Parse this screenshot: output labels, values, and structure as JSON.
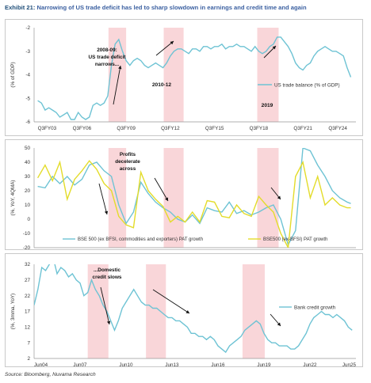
{
  "header": {
    "exhibit_label": "Exhibit 21:",
    "title": "Narrowing of US trade deficit has led to sharp slowdown in earnings and credit time and again"
  },
  "source": "Source: Bloomberg, Nuvama Research",
  "colors": {
    "series_blue": "#6ec3d4",
    "series_yellow": "#e3dc2a",
    "shade": "#f9d6d9",
    "axis_text": "#333333"
  },
  "chart_data": [
    {
      "type": "line",
      "panel": "top",
      "ylabel": "(% of GDP)",
      "ylim": [
        -6,
        -2
      ],
      "yticks": [
        -2,
        -3,
        -4,
        -5,
        -6
      ],
      "xlim": [
        2002.75,
        2024.6
      ],
      "xticks": [
        {
          "label": "Q3FY03",
          "x": 2003.0
        },
        {
          "label": "Q3FY06",
          "x": 2006.0
        },
        {
          "label": "Q3FY09",
          "x": 2009.0
        },
        {
          "label": "Q3FY12",
          "x": 2012.0
        },
        {
          "label": "Q3FY15",
          "x": 2015.0
        },
        {
          "label": "Q3FY18",
          "x": 2018.0
        },
        {
          "label": "Q3FY21",
          "x": 2021.0
        },
        {
          "label": "Q3FY24",
          "x": 2024.0
        }
      ],
      "shaded_ranges": [
        [
          2007.8,
          2009.0
        ],
        [
          2011.55,
          2012.9
        ],
        [
          2017.9,
          2019.35
        ]
      ],
      "series": [
        {
          "name": "US trade balance (% of GDP)",
          "color": "#6ec3d4",
          "x": [
            2003.0,
            2003.25,
            2003.5,
            2003.75,
            2004.0,
            2004.25,
            2004.5,
            2004.75,
            2005.0,
            2005.25,
            2005.5,
            2005.75,
            2006.0,
            2006.25,
            2006.5,
            2006.75,
            2007.0,
            2007.25,
            2007.5,
            2007.75,
            2008.0,
            2008.25,
            2008.5,
            2008.75,
            2009.0,
            2009.25,
            2009.5,
            2009.75,
            2010.0,
            2010.25,
            2010.5,
            2010.75,
            2011.0,
            2011.25,
            2011.5,
            2011.75,
            2012.0,
            2012.25,
            2012.5,
            2012.75,
            2013.0,
            2013.25,
            2013.5,
            2013.75,
            2014.0,
            2014.25,
            2014.5,
            2014.75,
            2015.0,
            2015.25,
            2015.5,
            2015.75,
            2016.0,
            2016.25,
            2016.5,
            2016.75,
            2017.0,
            2017.25,
            2017.5,
            2017.75,
            2018.0,
            2018.25,
            2018.5,
            2018.75,
            2019.0,
            2019.25,
            2019.5,
            2019.75,
            2020.0,
            2020.25,
            2020.5,
            2020.75,
            2021.0,
            2021.25,
            2021.5,
            2021.75,
            2022.0,
            2022.25,
            2022.5,
            2022.75,
            2023.0,
            2023.25,
            2023.5,
            2023.75,
            2024.0,
            2024.25
          ],
          "y": [
            -5.1,
            -5.2,
            -5.5,
            -5.4,
            -5.5,
            -5.6,
            -5.8,
            -5.7,
            -5.6,
            -5.9,
            -5.9,
            -5.6,
            -5.8,
            -5.9,
            -5.8,
            -5.3,
            -5.2,
            -5.3,
            -5.2,
            -4.9,
            -3.6,
            -2.7,
            -2.5,
            -3.0,
            -3.4,
            -3.6,
            -3.4,
            -3.3,
            -3.4,
            -3.6,
            -3.7,
            -3.6,
            -3.5,
            -3.6,
            -3.7,
            -3.5,
            -3.2,
            -3.0,
            -2.9,
            -2.9,
            -3.0,
            -3.1,
            -2.9,
            -2.9,
            -3.0,
            -2.8,
            -2.8,
            -2.9,
            -2.8,
            -2.8,
            -2.7,
            -2.9,
            -2.8,
            -2.8,
            -2.7,
            -2.8,
            -2.8,
            -2.9,
            -3.0,
            -2.8,
            -3.0,
            -3.1,
            -3.0,
            -2.8,
            -2.7,
            -2.4,
            -2.4,
            -2.6,
            -2.8,
            -3.1,
            -3.5,
            -3.7,
            -3.8,
            -3.6,
            -3.5,
            -3.2,
            -3.0,
            -2.9,
            -2.8,
            -2.9,
            -3.0,
            -3.0,
            -3.1,
            -3.2,
            -3.7,
            -4.1
          ]
        }
      ],
      "annotations": [
        {
          "text": "2008-09: US trade deficit narrows...",
          "lines": [
            "2008-09:",
            "US trade deficit",
            "narrows..."
          ]
        },
        {
          "text": "2010-12"
        },
        {
          "text": "2019"
        }
      ]
    },
    {
      "type": "line",
      "panel": "middle",
      "ylabel": "(%, YoY, 4QMA)",
      "ylim": [
        -20,
        50
      ],
      "yticks": [
        50,
        40,
        30,
        20,
        10,
        0,
        -10,
        -20
      ],
      "xlim": [
        2002.75,
        2024.6
      ],
      "xticks": [],
      "shaded_ranges": [
        [
          2007.8,
          2009.0
        ],
        [
          2011.55,
          2012.9
        ],
        [
          2017.9,
          2019.35
        ]
      ],
      "series": [
        {
          "name": "BSE 500 (ex BFSI, commodities and exporters) PAT growth",
          "color": "#6ec3d4",
          "x": [
            2003.0,
            2003.5,
            2004.0,
            2004.5,
            2005.0,
            2005.5,
            2006.0,
            2006.5,
            2007.0,
            2007.5,
            2008.0,
            2008.5,
            2009.0,
            2009.5,
            2010.0,
            2010.5,
            2011.0,
            2011.5,
            2012.0,
            2012.5,
            2013.0,
            2013.5,
            2014.0,
            2014.5,
            2015.0,
            2015.5,
            2016.0,
            2016.5,
            2017.0,
            2017.5,
            2018.0,
            2018.5,
            2019.0,
            2019.5,
            2020.0,
            2020.5,
            2021.0,
            2021.5,
            2022.0,
            2022.5,
            2023.0,
            2023.5,
            2024.0,
            2024.25
          ],
          "y": [
            23,
            22,
            30,
            25,
            30,
            24,
            28,
            38,
            40,
            34,
            30,
            10,
            -3,
            5,
            26,
            18,
            12,
            8,
            5,
            0,
            -2,
            3,
            -3,
            8,
            6,
            5,
            12,
            4,
            6,
            3,
            5,
            8,
            10,
            0,
            -18,
            -8,
            50,
            48,
            38,
            30,
            20,
            15,
            12,
            11
          ]
        },
        {
          "name": "BSE500 (ex-BFSI) PAT growth",
          "color": "#e3dc2a",
          "x": [
            2003.0,
            2003.5,
            2004.0,
            2004.5,
            2005.0,
            2005.5,
            2006.0,
            2006.5,
            2007.0,
            2007.5,
            2008.0,
            2008.5,
            2009.0,
            2009.5,
            2010.0,
            2010.5,
            2011.0,
            2011.5,
            2012.0,
            2012.5,
            2013.0,
            2013.5,
            2014.0,
            2014.5,
            2015.0,
            2015.5,
            2016.0,
            2016.5,
            2017.0,
            2017.5,
            2018.0,
            2018.5,
            2019.0,
            2019.5,
            2020.0,
            2020.5,
            2021.0,
            2021.5,
            2022.0,
            2022.5,
            2023.0,
            2023.5,
            2024.0,
            2024.25
          ],
          "y": [
            29,
            38,
            27,
            40,
            14,
            28,
            34,
            41,
            35,
            25,
            20,
            2,
            -4,
            -6,
            33,
            20,
            14,
            9,
            -2,
            2,
            -2,
            5,
            -2,
            13,
            12,
            2,
            1,
            10,
            4,
            2,
            16,
            10,
            5,
            -10,
            -20,
            30,
            40,
            15,
            30,
            10,
            15,
            10,
            8,
            8
          ]
        }
      ],
      "annotations": [
        {
          "text": "Profits decelerate across",
          "lines": [
            "Profits",
            "decelerate",
            "across"
          ]
        }
      ]
    },
    {
      "type": "line",
      "panel": "bottom",
      "ylabel": "(%, 3mma, YoY)",
      "ylim": [
        2,
        32
      ],
      "yticks": [
        32,
        27,
        22,
        17,
        12,
        7,
        2
      ],
      "xlim": [
        2004.5,
        2025.5
      ],
      "xticks": [
        {
          "label": "Jun04",
          "x": 2004.5
        },
        {
          "label": "Jun07",
          "x": 2007.5
        },
        {
          "label": "Jun10",
          "x": 2010.5
        },
        {
          "label": "Jun13",
          "x": 2013.5
        },
        {
          "label": "Jun16",
          "x": 2016.5
        },
        {
          "label": "Jun19",
          "x": 2019.5
        },
        {
          "label": "Jun22",
          "x": 2022.5
        },
        {
          "label": "Jun25",
          "x": 2025.5
        }
      ],
      "shaded_ranges": [
        [
          2008.0,
          2009.35
        ],
        [
          2011.8,
          2013.1
        ],
        [
          2018.1,
          2019.55
        ]
      ],
      "series": [
        {
          "name": "Bank credit growth",
          "color": "#6ec3d4",
          "x": [
            2004.5,
            2004.75,
            2005.0,
            2005.25,
            2005.5,
            2005.75,
            2006.0,
            2006.25,
            2006.5,
            2006.75,
            2007.0,
            2007.25,
            2007.5,
            2007.75,
            2008.0,
            2008.25,
            2008.5,
            2008.75,
            2009.0,
            2009.25,
            2009.5,
            2009.75,
            2010.0,
            2010.25,
            2010.5,
            2010.75,
            2011.0,
            2011.25,
            2011.5,
            2011.75,
            2012.0,
            2012.25,
            2012.5,
            2012.75,
            2013.0,
            2013.25,
            2013.5,
            2013.75,
            2014.0,
            2014.25,
            2014.5,
            2014.75,
            2015.0,
            2015.25,
            2015.5,
            2015.75,
            2016.0,
            2016.25,
            2016.5,
            2016.75,
            2017.0,
            2017.25,
            2017.5,
            2017.75,
            2018.0,
            2018.25,
            2018.5,
            2018.75,
            2019.0,
            2019.25,
            2019.5,
            2019.75,
            2020.0,
            2020.25,
            2020.5,
            2020.75,
            2021.0,
            2021.25,
            2021.5,
            2021.75,
            2022.0,
            2022.25,
            2022.5,
            2022.75,
            2023.0,
            2023.25,
            2023.5,
            2023.75,
            2024.0,
            2024.25,
            2024.5,
            2024.75,
            2025.0,
            2025.25
          ],
          "y": [
            19,
            24,
            31,
            30,
            32,
            34,
            29,
            31,
            30,
            28,
            29,
            27,
            26,
            22,
            23,
            27,
            24,
            22,
            19,
            17,
            14,
            11,
            14,
            18,
            20,
            22,
            24,
            22,
            20,
            19,
            19,
            18,
            18,
            17,
            16,
            15,
            15,
            14,
            14,
            13,
            12,
            10,
            10,
            9,
            9,
            8,
            9,
            8,
            6,
            5,
            4,
            6,
            7,
            8,
            9,
            11,
            12,
            13,
            14,
            13,
            10,
            8,
            7,
            7,
            6,
            6,
            6,
            5,
            5,
            6,
            8,
            10,
            13,
            15,
            16,
            17,
            16,
            16,
            15,
            16,
            15,
            14,
            12,
            11
          ]
        }
      ],
      "annotations": [
        {
          "text": "...Domestic credit slows",
          "lines": [
            "...Domestic",
            "credit slows"
          ]
        }
      ]
    }
  ]
}
